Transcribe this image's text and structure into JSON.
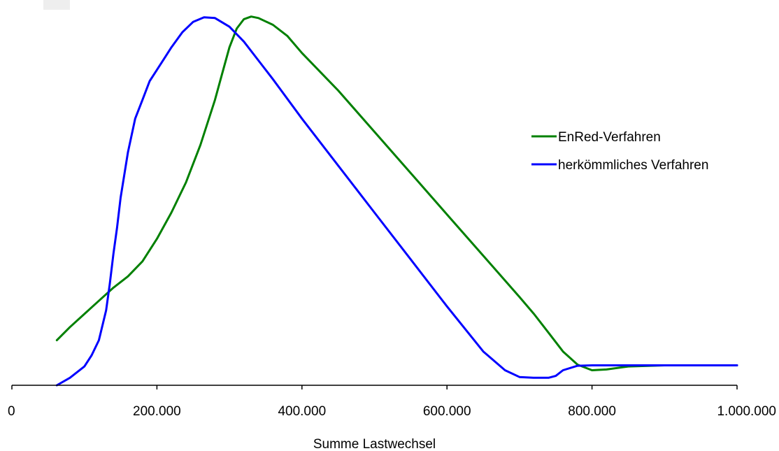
{
  "chart_data": {
    "type": "line",
    "title": "",
    "xlabel": "Summe Lastwechsel",
    "ylabel": "",
    "xlim": [
      0,
      1000000
    ],
    "ylim": [
      0,
      1
    ],
    "x_ticks": [
      0,
      200000,
      400000,
      600000,
      800000,
      1000000
    ],
    "x_tick_labels": [
      "0",
      "200.000",
      "400.000",
      "600.000",
      "800.000",
      "1.000.000"
    ],
    "grid": false,
    "legend_position": "right",
    "series": [
      {
        "name": "EnRed-Verfahren",
        "color": "#008000",
        "x": [
          62000,
          80000,
          100000,
          120000,
          140000,
          160000,
          180000,
          200000,
          220000,
          240000,
          260000,
          280000,
          290000,
          300000,
          310000,
          320000,
          330000,
          340000,
          360000,
          380000,
          400000,
          450000,
          500000,
          550000,
          600000,
          650000,
          700000,
          720000,
          740000,
          760000,
          780000,
          800000,
          820000,
          850000,
          900000,
          950000,
          1000000
        ],
        "y": [
          0.12,
          0.155,
          0.19,
          0.225,
          0.26,
          0.29,
          0.33,
          0.39,
          0.46,
          0.54,
          0.64,
          0.76,
          0.83,
          0.9,
          0.95,
          0.975,
          0.982,
          0.978,
          0.96,
          0.93,
          0.885,
          0.785,
          0.675,
          0.565,
          0.455,
          0.345,
          0.235,
          0.19,
          0.14,
          0.09,
          0.055,
          0.04,
          0.042,
          0.05,
          0.053,
          0.053,
          0.053
        ]
      },
      {
        "name": "herkömmliches Verfahren",
        "color": "#0000ff",
        "x": [
          62000,
          80000,
          100000,
          110000,
          120000,
          130000,
          135000,
          140000,
          145000,
          150000,
          160000,
          170000,
          180000,
          190000,
          200000,
          210000,
          220000,
          235000,
          250000,
          265000,
          280000,
          300000,
          320000,
          340000,
          360000,
          400000,
          450000,
          500000,
          550000,
          600000,
          650000,
          680000,
          700000,
          720000,
          740000,
          750000,
          760000,
          780000,
          800000,
          850000,
          900000,
          950000,
          1000000
        ],
        "y": [
          0.0,
          0.02,
          0.05,
          0.08,
          0.12,
          0.2,
          0.27,
          0.35,
          0.42,
          0.5,
          0.62,
          0.71,
          0.76,
          0.81,
          0.84,
          0.87,
          0.9,
          0.94,
          0.968,
          0.98,
          0.978,
          0.955,
          0.915,
          0.865,
          0.815,
          0.71,
          0.585,
          0.46,
          0.335,
          0.21,
          0.09,
          0.04,
          0.022,
          0.02,
          0.02,
          0.025,
          0.04,
          0.052,
          0.053,
          0.053,
          0.053,
          0.053,
          0.053
        ]
      }
    ]
  }
}
